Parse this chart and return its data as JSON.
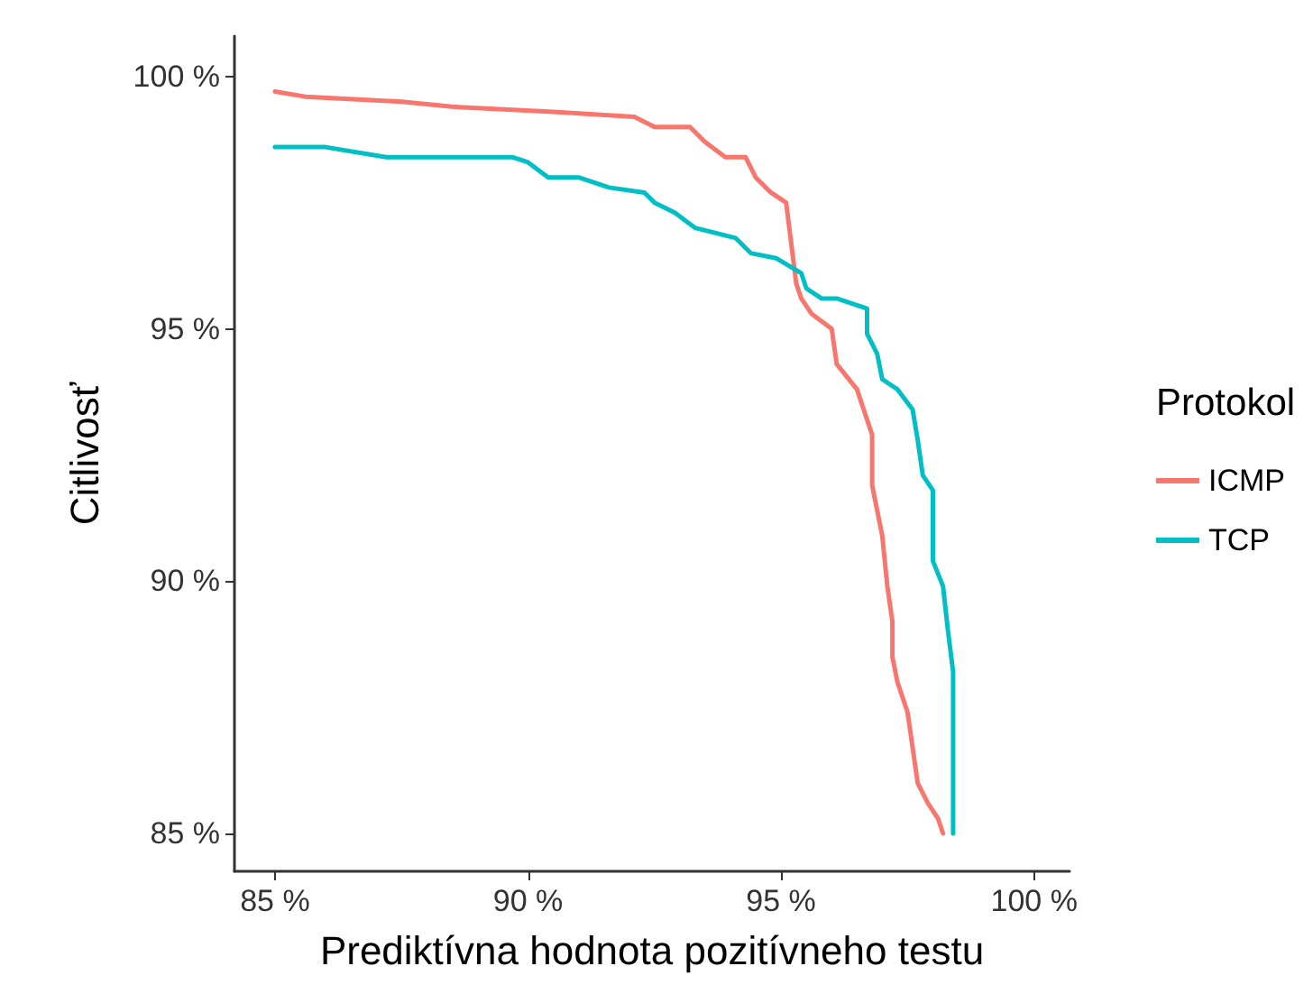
{
  "chart_data": {
    "type": "line",
    "xlabel": "Prediktívna hodnota pozitívneho testu",
    "ylabel": "Citlivosť",
    "legend_title": "Protokol",
    "legend": "right",
    "grid": false,
    "marker": "none",
    "line_style": "solid",
    "xlim": [
      84.2,
      100.7
    ],
    "ylim": [
      84.25,
      100.8
    ],
    "xticks": [
      {
        "value": 85,
        "label": "85 %"
      },
      {
        "value": 90,
        "label": "90 %"
      },
      {
        "value": 95,
        "label": "95 %"
      },
      {
        "value": 100,
        "label": "100 %"
      }
    ],
    "yticks": [
      {
        "value": 85,
        "label": "85 %"
      },
      {
        "value": 90,
        "label": "90 %"
      },
      {
        "value": 95,
        "label": "95 %"
      },
      {
        "value": 100,
        "label": "100 %"
      }
    ],
    "series": [
      {
        "name": "ICMP",
        "color": "#f8766d",
        "x": [
          85.0,
          85.6,
          87.5,
          88.5,
          90.5,
          92.1,
          92.5,
          93.2,
          93.5,
          93.9,
          94.3,
          94.5,
          94.8,
          95.1,
          95.2,
          95.3,
          95.4,
          95.6,
          96.0,
          96.1,
          96.5,
          96.6,
          96.7,
          96.8,
          96.8,
          97.0,
          97.1,
          97.2,
          97.2,
          97.3,
          97.5,
          97.6,
          97.7,
          97.9,
          98.1,
          98.2
        ],
        "values": [
          99.7,
          99.6,
          99.5,
          99.4,
          99.3,
          99.2,
          99.0,
          99.0,
          98.7,
          98.4,
          98.4,
          98.0,
          97.7,
          97.5,
          96.7,
          95.9,
          95.6,
          95.3,
          95.0,
          94.3,
          93.8,
          93.5,
          93.2,
          92.9,
          91.9,
          90.9,
          89.9,
          89.2,
          88.5,
          88.0,
          87.4,
          86.7,
          86.0,
          85.6,
          85.3,
          85.0
        ]
      },
      {
        "name": "TCP",
        "color": "#00bfc4",
        "x": [
          85.0,
          86.0,
          87.2,
          89.7,
          90.0,
          90.4,
          91.0,
          91.6,
          92.3,
          92.5,
          92.9,
          93.3,
          94.1,
          94.4,
          94.9,
          95.4,
          95.5,
          95.8,
          96.1,
          96.7,
          96.7,
          96.9,
          97.0,
          97.3,
          97.6,
          97.7,
          97.8,
          98.0,
          98.0,
          98.2,
          98.3,
          98.4,
          98.4
        ],
        "values": [
          98.6,
          98.6,
          98.4,
          98.4,
          98.3,
          98.0,
          98.0,
          97.8,
          97.7,
          97.5,
          97.3,
          97.0,
          96.8,
          96.5,
          96.4,
          96.1,
          95.8,
          95.6,
          95.6,
          95.4,
          94.9,
          94.5,
          94.0,
          93.8,
          93.4,
          92.8,
          92.1,
          91.8,
          90.4,
          89.9,
          89.0,
          88.2,
          85.0
        ]
      }
    ]
  }
}
